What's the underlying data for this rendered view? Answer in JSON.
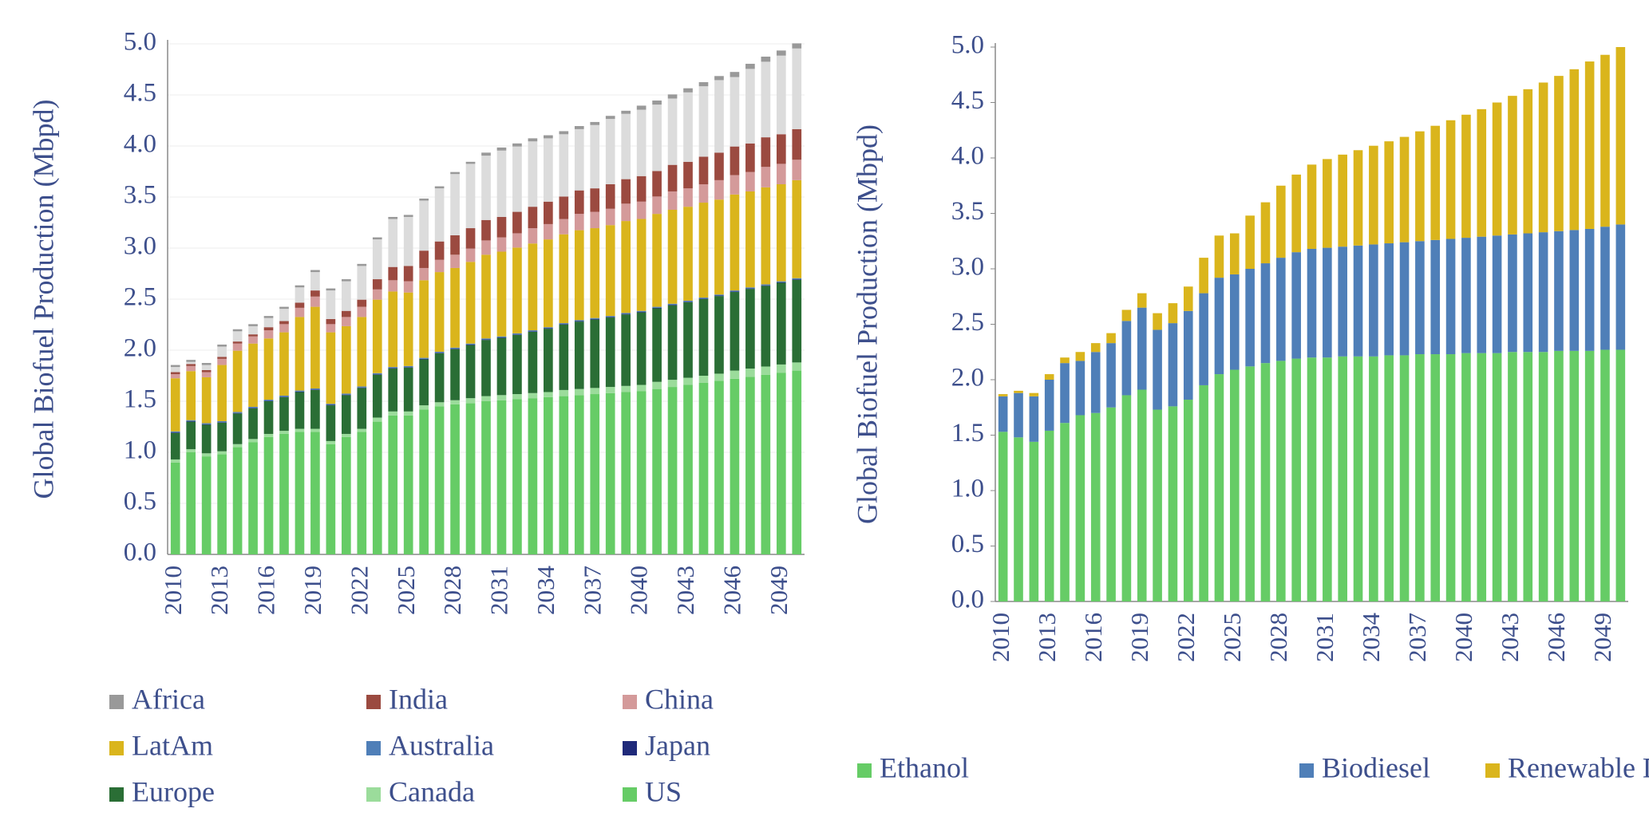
{
  "chart_data": [
    {
      "type": "stacked_bar",
      "ylabel": "Global Biofuel Production (Mbpd)",
      "categories": [
        "2010",
        null,
        null,
        "2013",
        null,
        null,
        "2016",
        null,
        null,
        "2019",
        null,
        null,
        "2022",
        null,
        null,
        "2025",
        null,
        null,
        "2028",
        null,
        null,
        "2031",
        null,
        null,
        "2034",
        null,
        null,
        "2037",
        null,
        null,
        "2040",
        null,
        null,
        "2043",
        null,
        null,
        "2046",
        null,
        null,
        "2049",
        null
      ],
      "ylim": [
        0,
        5
      ],
      "yticks": [
        {
          "value": 0,
          "label": "0.0"
        },
        0.5,
        {
          "value": 1,
          "label": "1.0"
        },
        1.5,
        {
          "value": 2,
          "label": "2.0"
        },
        2.5,
        {
          "value": 3,
          "label": "3.0"
        },
        3.5,
        {
          "value": 4,
          "label": "4.0"
        },
        4.5,
        {
          "value": 5,
          "label": "5.0"
        }
      ],
      "grid": true,
      "series": [
        {
          "name": "US",
          "color": "#66cc66",
          "values": [
            0.9,
            1.0,
            0.96,
            0.98,
            1.05,
            1.1,
            1.15,
            1.18,
            1.2,
            1.2,
            1.08,
            1.15,
            1.2,
            1.3,
            1.36,
            1.36,
            1.42,
            1.45,
            1.47,
            1.48,
            1.5,
            1.51,
            1.52,
            1.53,
            1.54,
            1.55,
            1.56,
            1.57,
            1.58,
            1.59,
            1.6,
            1.62,
            1.64,
            1.66,
            1.68,
            1.7,
            1.72,
            1.74,
            1.76,
            1.78,
            1.8
          ]
        },
        {
          "name": "Canada",
          "color": "#9bdc9b",
          "values": [
            0.03,
            0.03,
            0.03,
            0.03,
            0.03,
            0.03,
            0.03,
            0.03,
            0.03,
            0.03,
            0.03,
            0.03,
            0.03,
            0.04,
            0.04,
            0.04,
            0.04,
            0.04,
            0.04,
            0.05,
            0.05,
            0.05,
            0.05,
            0.05,
            0.05,
            0.06,
            0.06,
            0.06,
            0.06,
            0.06,
            0.06,
            0.07,
            0.07,
            0.07,
            0.07,
            0.07,
            0.08,
            0.08,
            0.08,
            0.08,
            0.08
          ]
        },
        {
          "name": "Europe",
          "color": "#2a6e35",
          "values": [
            0.26,
            0.27,
            0.28,
            0.28,
            0.3,
            0.3,
            0.32,
            0.33,
            0.36,
            0.38,
            0.35,
            0.38,
            0.4,
            0.42,
            0.42,
            0.43,
            0.45,
            0.48,
            0.5,
            0.52,
            0.55,
            0.56,
            0.58,
            0.6,
            0.62,
            0.64,
            0.66,
            0.67,
            0.68,
            0.7,
            0.71,
            0.72,
            0.73,
            0.74,
            0.75,
            0.76,
            0.77,
            0.78,
            0.79,
            0.8,
            0.81
          ]
        },
        {
          "name": "Japan",
          "color": "#1f2a7a",
          "values": [
            0.005,
            0.005,
            0.005,
            0.005,
            0.005,
            0.005,
            0.005,
            0.005,
            0.005,
            0.005,
            0.005,
            0.005,
            0.005,
            0.005,
            0.005,
            0.005,
            0.005,
            0.005,
            0.005,
            0.005,
            0.005,
            0.005,
            0.005,
            0.005,
            0.005,
            0.005,
            0.005,
            0.005,
            0.005,
            0.005,
            0.005,
            0.005,
            0.005,
            0.005,
            0.005,
            0.005,
            0.005,
            0.005,
            0.005,
            0.005,
            0.005
          ]
        },
        {
          "name": "Australia",
          "color": "#4f7fb8",
          "values": [
            0.01,
            0.01,
            0.01,
            0.01,
            0.01,
            0.01,
            0.01,
            0.01,
            0.01,
            0.01,
            0.01,
            0.01,
            0.01,
            0.01,
            0.01,
            0.01,
            0.01,
            0.01,
            0.01,
            0.01,
            0.01,
            0.01,
            0.01,
            0.01,
            0.01,
            0.01,
            0.01,
            0.01,
            0.01,
            0.01,
            0.01,
            0.01,
            0.01,
            0.01,
            0.01,
            0.01,
            0.01,
            0.01,
            0.01,
            0.01,
            0.01
          ]
        },
        {
          "name": "LatAm",
          "color": "#dab51c",
          "values": [
            0.52,
            0.48,
            0.45,
            0.55,
            0.6,
            0.62,
            0.6,
            0.62,
            0.72,
            0.8,
            0.7,
            0.66,
            0.68,
            0.72,
            0.74,
            0.72,
            0.76,
            0.78,
            0.78,
            0.8,
            0.82,
            0.83,
            0.84,
            0.85,
            0.86,
            0.87,
            0.88,
            0.88,
            0.89,
            0.9,
            0.9,
            0.91,
            0.92,
            0.92,
            0.93,
            0.93,
            0.94,
            0.94,
            0.95,
            0.95,
            0.96
          ]
        },
        {
          "name": "China",
          "color": "#d49a9a",
          "values": [
            0.04,
            0.05,
            0.05,
            0.06,
            0.07,
            0.07,
            0.08,
            0.08,
            0.09,
            0.1,
            0.08,
            0.09,
            0.1,
            0.1,
            0.11,
            0.11,
            0.12,
            0.12,
            0.13,
            0.13,
            0.14,
            0.14,
            0.14,
            0.15,
            0.15,
            0.15,
            0.16,
            0.16,
            0.16,
            0.17,
            0.17,
            0.17,
            0.18,
            0.18,
            0.18,
            0.19,
            0.19,
            0.19,
            0.2,
            0.2,
            0.2
          ]
        },
        {
          "name": "India",
          "color": "#9b4a40",
          "values": [
            0.02,
            0.02,
            0.02,
            0.02,
            0.02,
            0.02,
            0.03,
            0.03,
            0.05,
            0.06,
            0.05,
            0.06,
            0.07,
            0.1,
            0.13,
            0.15,
            0.17,
            0.18,
            0.19,
            0.2,
            0.2,
            0.2,
            0.21,
            0.21,
            0.22,
            0.22,
            0.23,
            0.23,
            0.24,
            0.24,
            0.25,
            0.25,
            0.26,
            0.26,
            0.27,
            0.27,
            0.28,
            0.28,
            0.29,
            0.29,
            0.3
          ]
        },
        {
          "name": null,
          "color": "#dcdcdc",
          "values": [
            0.05,
            0.02,
            0.05,
            0.1,
            0.1,
            0.08,
            0.09,
            0.12,
            0.15,
            0.18,
            0.28,
            0.29,
            0.33,
            0.39,
            0.47,
            0.48,
            0.49,
            0.52,
            0.6,
            0.63,
            0.63,
            0.65,
            0.64,
            0.64,
            0.62,
            0.61,
            0.6,
            0.62,
            0.64,
            0.64,
            0.65,
            0.65,
            0.65,
            0.68,
            0.69,
            0.71,
            0.68,
            0.73,
            0.74,
            0.77,
            0.79
          ]
        },
        {
          "name": "Africa",
          "color": "#999999",
          "values": [
            0.02,
            0.02,
            0.02,
            0.02,
            0.02,
            0.02,
            0.02,
            0.02,
            0.02,
            0.02,
            0.02,
            0.02,
            0.02,
            0.02,
            0.02,
            0.02,
            0.02,
            0.02,
            0.02,
            0.02,
            0.03,
            0.03,
            0.03,
            0.03,
            0.03,
            0.03,
            0.03,
            0.03,
            0.03,
            0.03,
            0.04,
            0.04,
            0.04,
            0.04,
            0.04,
            0.04,
            0.05,
            0.05,
            0.05,
            0.05,
            0.05
          ]
        }
      ]
    },
    {
      "type": "stacked_bar",
      "ylabel": "Global Biofuel Production (Mbpd)",
      "categories": [
        "2010",
        null,
        null,
        "2013",
        null,
        null,
        "2016",
        null,
        null,
        "2019",
        null,
        null,
        "2022",
        null,
        null,
        "2025",
        null,
        null,
        "2028",
        null,
        null,
        "2031",
        null,
        null,
        "2034",
        null,
        null,
        "2037",
        null,
        null,
        "2040",
        null,
        null,
        "2043",
        null,
        null,
        "2046",
        null,
        null,
        "2049",
        null
      ],
      "ylim": [
        0,
        5
      ],
      "yticks": [
        {
          "value": 0,
          "label": "0.0"
        },
        0.5,
        {
          "value": 1,
          "label": "1.0"
        },
        1.5,
        {
          "value": 2,
          "label": "2.0"
        },
        2.5,
        {
          "value": 3,
          "label": "3.0"
        },
        3.5,
        {
          "value": 4,
          "label": "4.0"
        },
        4.5,
        {
          "value": 5,
          "label": "5.0"
        }
      ],
      "grid": false,
      "series": [
        {
          "name": "Ethanol",
          "color": "#66cc66",
          "values": [
            1.53,
            1.48,
            1.44,
            1.54,
            1.61,
            1.68,
            1.7,
            1.75,
            1.86,
            1.91,
            1.73,
            1.76,
            1.82,
            1.95,
            2.05,
            2.09,
            2.12,
            2.15,
            2.17,
            2.19,
            2.2,
            2.2,
            2.21,
            2.21,
            2.21,
            2.22,
            2.22,
            2.23,
            2.23,
            2.23,
            2.24,
            2.24,
            2.24,
            2.25,
            2.25,
            2.25,
            2.26,
            2.26,
            2.26,
            2.27,
            2.27
          ]
        },
        {
          "name": "Biodiesel",
          "color": "#4f7fb8",
          "values": [
            0.32,
            0.4,
            0.41,
            0.46,
            0.54,
            0.49,
            0.55,
            0.58,
            0.67,
            0.74,
            0.72,
            0.75,
            0.8,
            0.83,
            0.87,
            0.86,
            0.88,
            0.9,
            0.93,
            0.96,
            0.98,
            0.99,
            0.99,
            1.0,
            1.01,
            1.01,
            1.02,
            1.02,
            1.03,
            1.04,
            1.04,
            1.05,
            1.06,
            1.06,
            1.07,
            1.08,
            1.08,
            1.09,
            1.1,
            1.11,
            1.13
          ]
        },
        {
          "name": "Renewable Diesel and SAF",
          "color": "#dab51c",
          "values": [
            0.02,
            0.02,
            0.03,
            0.05,
            0.05,
            0.08,
            0.08,
            0.09,
            0.1,
            0.13,
            0.15,
            0.18,
            0.22,
            0.32,
            0.38,
            0.37,
            0.48,
            0.55,
            0.65,
            0.7,
            0.76,
            0.8,
            0.83,
            0.86,
            0.89,
            0.92,
            0.95,
            0.99,
            1.03,
            1.07,
            1.11,
            1.15,
            1.2,
            1.25,
            1.3,
            1.35,
            1.4,
            1.45,
            1.51,
            1.55,
            1.6
          ]
        }
      ]
    }
  ]
}
